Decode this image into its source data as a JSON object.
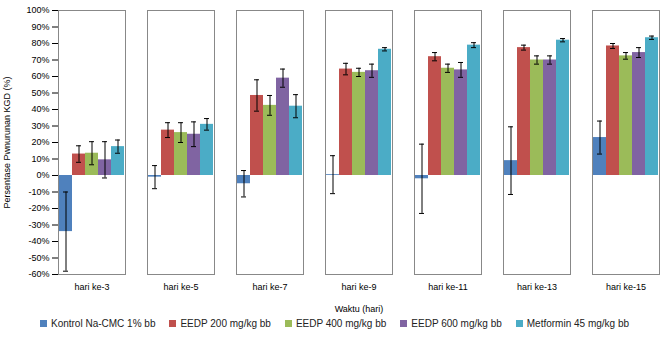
{
  "chart_data": {
    "type": "bar",
    "x_label": "Waktu (hari)",
    "y_label": "Persentase Pwnurunan KGD (%)",
    "categories": [
      "hari ke-3",
      "hari ke-5",
      "hari ke-7",
      "hari ke-9",
      "hari ke-11",
      "hari ke-13",
      "hari ke-15"
    ],
    "series": [
      {
        "name": "Kontrol Na-CMC 1% bb",
        "color": "#4f81bd",
        "values": [
          -34,
          -1,
          -5,
          0.5,
          -2,
          9,
          23
        ],
        "errors": [
          24,
          7,
          8,
          11.5,
          21,
          20.5,
          10
        ]
      },
      {
        "name": "EEDP 200 mg/kg bb",
        "color": "#c0504d",
        "values": [
          13,
          27.5,
          48.5,
          64.5,
          72,
          77.5,
          78.5
        ],
        "errors": [
          5,
          4.5,
          9.5,
          3.5,
          2.5,
          1.5,
          1.5
        ]
      },
      {
        "name": "EEDP 400 mg/kg bb",
        "color": "#9bbb59",
        "values": [
          13.5,
          26,
          42.5,
          62.5,
          65,
          70,
          72.5
        ],
        "errors": [
          7,
          6,
          6,
          2.5,
          2.5,
          2.5,
          2
        ]
      },
      {
        "name": "EEDP 600 mg/kg bb",
        "color": "#8064a2",
        "values": [
          9.5,
          25,
          59,
          63.5,
          64,
          70,
          74.5
        ],
        "errors": [
          11,
          7.5,
          5.5,
          4,
          4.5,
          2.5,
          3
        ]
      },
      {
        "name": "Metformin 45 mg/kg bb",
        "color": "#4bacc6",
        "values": [
          17.5,
          31,
          42,
          76.5,
          79,
          82,
          83.5
        ],
        "errors": [
          4,
          3.5,
          7,
          1,
          1.5,
          1,
          1
        ]
      }
    ],
    "ylim": [
      -60,
      100
    ],
    "yticks": [
      {
        "value": -60,
        "label": "-60%"
      },
      {
        "value": -50,
        "label": "-50%"
      },
      {
        "value": -40,
        "label": "-40%"
      },
      {
        "value": -30,
        "label": "-30%"
      },
      {
        "value": -20,
        "label": "-20%"
      },
      {
        "value": -10,
        "label": "-10%"
      },
      {
        "value": 0,
        "label": "0%"
      },
      {
        "value": 10,
        "label": "10%"
      },
      {
        "value": 20,
        "label": "20%"
      },
      {
        "value": 30,
        "label": "30%"
      },
      {
        "value": 40,
        "label": "40%"
      },
      {
        "value": 50,
        "label": "50%"
      },
      {
        "value": 60,
        "label": "60%"
      },
      {
        "value": 70,
        "label": "70%"
      },
      {
        "value": 80,
        "label": "80%"
      },
      {
        "value": 90,
        "label": "90%"
      },
      {
        "value": 100,
        "label": "100%"
      }
    ],
    "grid": false,
    "legend": "bottom"
  }
}
